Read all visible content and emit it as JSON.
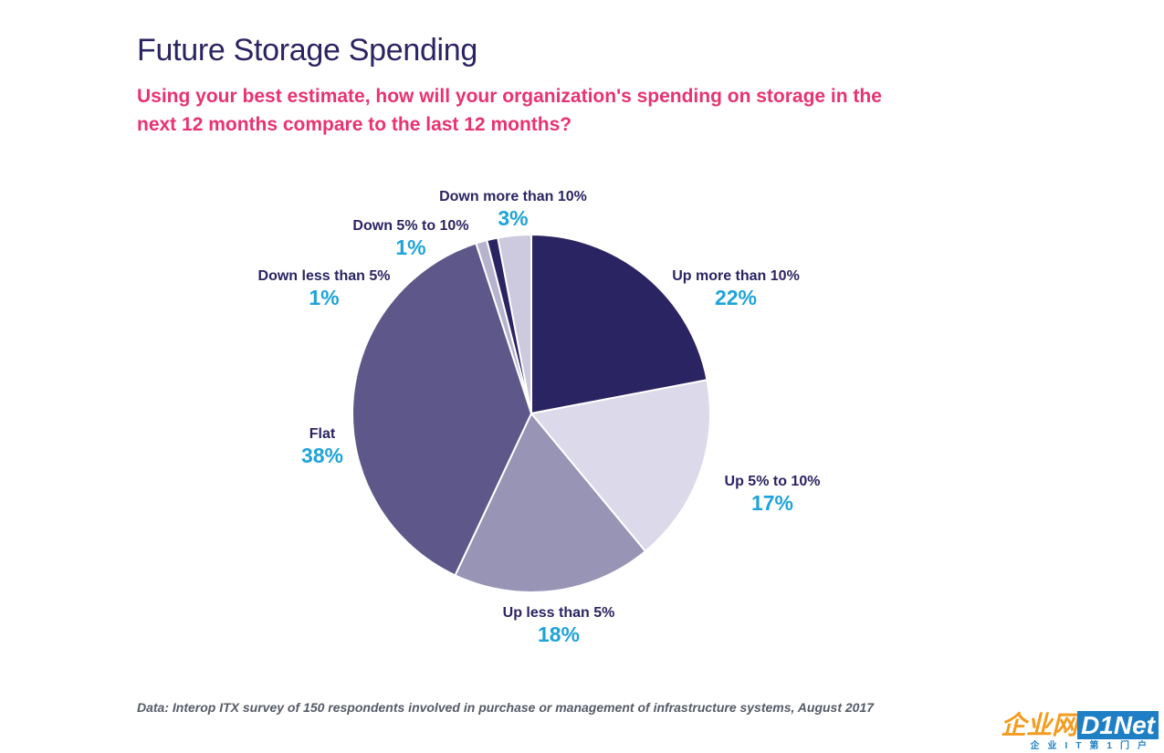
{
  "title": "Future Storage Spending",
  "subtitle": "Using your best estimate, how will your organization's spending on storage in the next 12 months compare to the last 12 months?",
  "source": "Data: Interop ITX survey of 150 respondents involved in purchase or management of infrastructure systems, August 2017",
  "watermark": {
    "brand_cn": "企业网",
    "brand_en": "D1Net",
    "sub": "企业IT第1门户"
  },
  "chart_data": {
    "type": "pie",
    "start": "12 o'clock, clockwise",
    "slices": [
      {
        "name": "Up more than 10%",
        "label": "22%",
        "value": 22,
        "color": "#2b2462"
      },
      {
        "name": "Up 5% to 10%",
        "label": "17%",
        "value": 17,
        "color": "#dcdaea"
      },
      {
        "name": "Up less than 5%",
        "label": "18%",
        "value": 18,
        "color": "#9894b6"
      },
      {
        "name": "Flat",
        "label": "38%",
        "value": 38,
        "color": "#5d5889"
      },
      {
        "name": "Down less than 5%",
        "label": "1%",
        "value": 1,
        "color": "#b7b3cf"
      },
      {
        "name": "Down 5% to 10%",
        "label": "1%",
        "value": 1,
        "color": "#2b2462"
      },
      {
        "name": "Down more than 10%",
        "label": "3%",
        "value": 3,
        "color": "#cdcadf"
      }
    ]
  }
}
